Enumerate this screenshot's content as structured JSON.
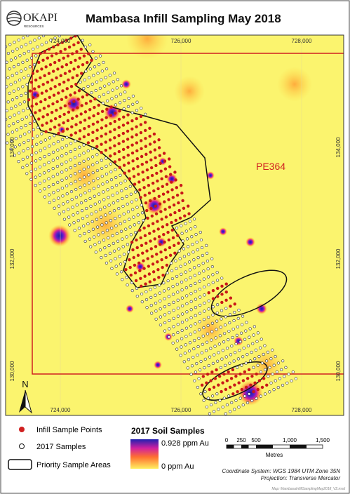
{
  "header": {
    "logo": "OKAPI",
    "logo_sub": "RESOURCES",
    "title": "Mambasa Infill Sampling May 2018"
  },
  "map": {
    "top_labels": [
      "724,000",
      "726,000",
      "728,000"
    ],
    "bottom_labels": [
      "724,000",
      "726,000",
      "728,000"
    ],
    "left_labels": [
      "134,000",
      "132,000",
      "130,000"
    ],
    "right_labels": [
      "134,000",
      "132,000",
      "130,000"
    ],
    "area_label": "PE364",
    "north": "N"
  },
  "legend": {
    "items": [
      "Infill Sample Points",
      "2017 Samples",
      "Priority Sample Areas"
    ],
    "gradient_title": "2017 Soil Samples",
    "gradient_max": "0.928 ppm Au",
    "gradient_min": "0 ppm Au"
  },
  "scale": {
    "ticks": [
      "0",
      "250",
      "500",
      "1,000",
      "1,500"
    ],
    "unit": "Metres"
  },
  "footer": {
    "coordinate_system": "Coordinate System: WGS 1984 UTM Zone 35N",
    "projection": "Projection: Transverse Mercator",
    "file": "Map: MambasaInfillSamplingMay2018_V2.mxd"
  }
}
